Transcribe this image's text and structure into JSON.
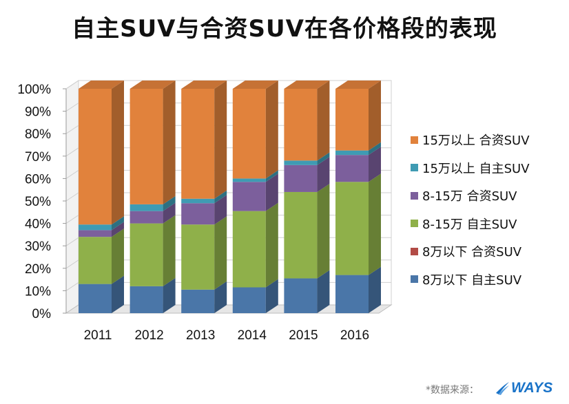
{
  "title": "自主SUV与合资SUV在各价格段的表现",
  "source_label": "*数据来源：",
  "brand": "WAYS",
  "colors": {
    "8万以下 自主SUV": "#4a76a8",
    "8万以下 合资SUV": "#b24b46",
    "8-15万 自主SUV": "#8fb04a",
    "8-15万 合资SUV": "#7c5f9c",
    "15万以上 自主SUV": "#3f9bb3",
    "15万以上 合资SUV": "#e1823c",
    "brand": "#1a73c8"
  },
  "chart_data": {
    "type": "bar",
    "stacked": true,
    "percent": true,
    "title": "自主SUV与合资SUV在各价格段的表现",
    "categories": [
      "2011",
      "2012",
      "2013",
      "2014",
      "2015",
      "2016"
    ],
    "series": [
      {
        "name": "8万以下 自主SUV",
        "values": [
          13,
          12,
          10.5,
          11.5,
          15.5,
          17
        ]
      },
      {
        "name": "8万以下 合资SUV",
        "values": [
          0,
          0,
          0,
          0,
          0,
          0
        ]
      },
      {
        "name": "8-15万 自主SUV",
        "values": [
          21,
          28,
          29,
          34,
          38.5,
          41.5
        ]
      },
      {
        "name": "8-15万 合资SUV",
        "values": [
          3,
          5.5,
          9.5,
          13,
          12,
          12
        ]
      },
      {
        "name": "15万以上 自主SUV",
        "values": [
          2.5,
          3,
          2,
          1.5,
          2,
          2
        ]
      },
      {
        "name": "15万以上 合资SUV",
        "values": [
          60.5,
          51.5,
          49,
          40,
          32,
          27.5
        ]
      }
    ],
    "yticks": [
      "0%",
      "10%",
      "20%",
      "30%",
      "40%",
      "50%",
      "60%",
      "70%",
      "80%",
      "90%",
      "100%"
    ],
    "ylim": [
      0,
      100
    ],
    "grid": true,
    "legend_position": "right"
  }
}
